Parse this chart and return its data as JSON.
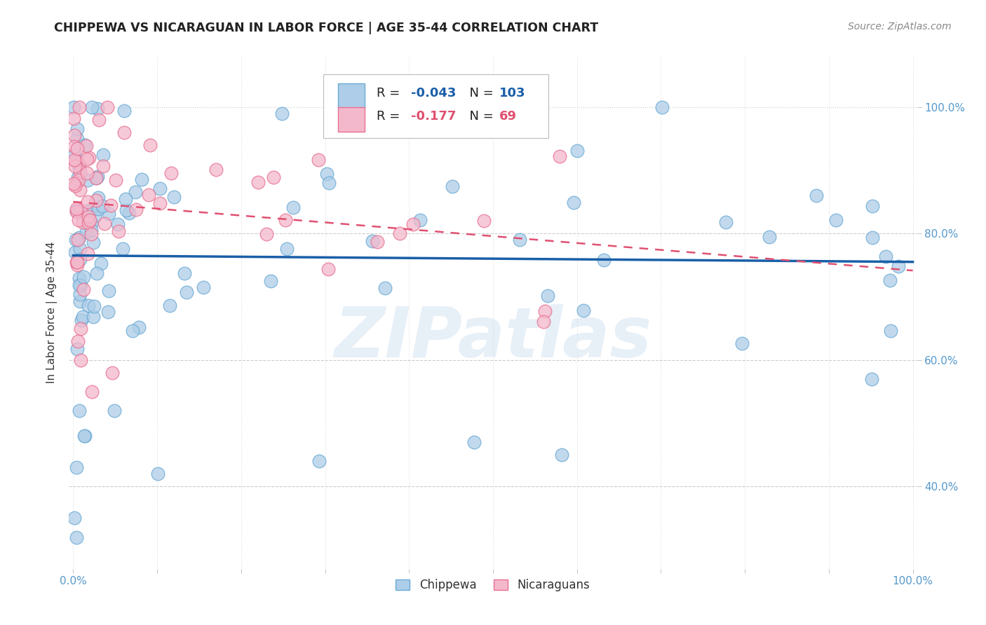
{
  "title": "CHIPPEWA VS NICARAGUAN IN LABOR FORCE | AGE 35-44 CORRELATION CHART",
  "source": "Source: ZipAtlas.com",
  "ylabel": "In Labor Force | Age 35-44",
  "chippewa_R": -0.043,
  "chippewa_N": 103,
  "nicaraguan_R": -0.177,
  "nicaraguan_N": 69,
  "chippewa_color": "#aecde8",
  "chippewa_edge_color": "#6aaad4",
  "nicaraguan_color": "#f4b8cc",
  "nicaraguan_edge_color": "#e87090",
  "trend_chippewa_color": "#1a5fa8",
  "trend_nicaraguan_color": "#e05070",
  "watermark": "ZIPatlas",
  "background_color": "#ffffff",
  "ytick_color": "#5599cc",
  "xtick_color": "#5599cc"
}
